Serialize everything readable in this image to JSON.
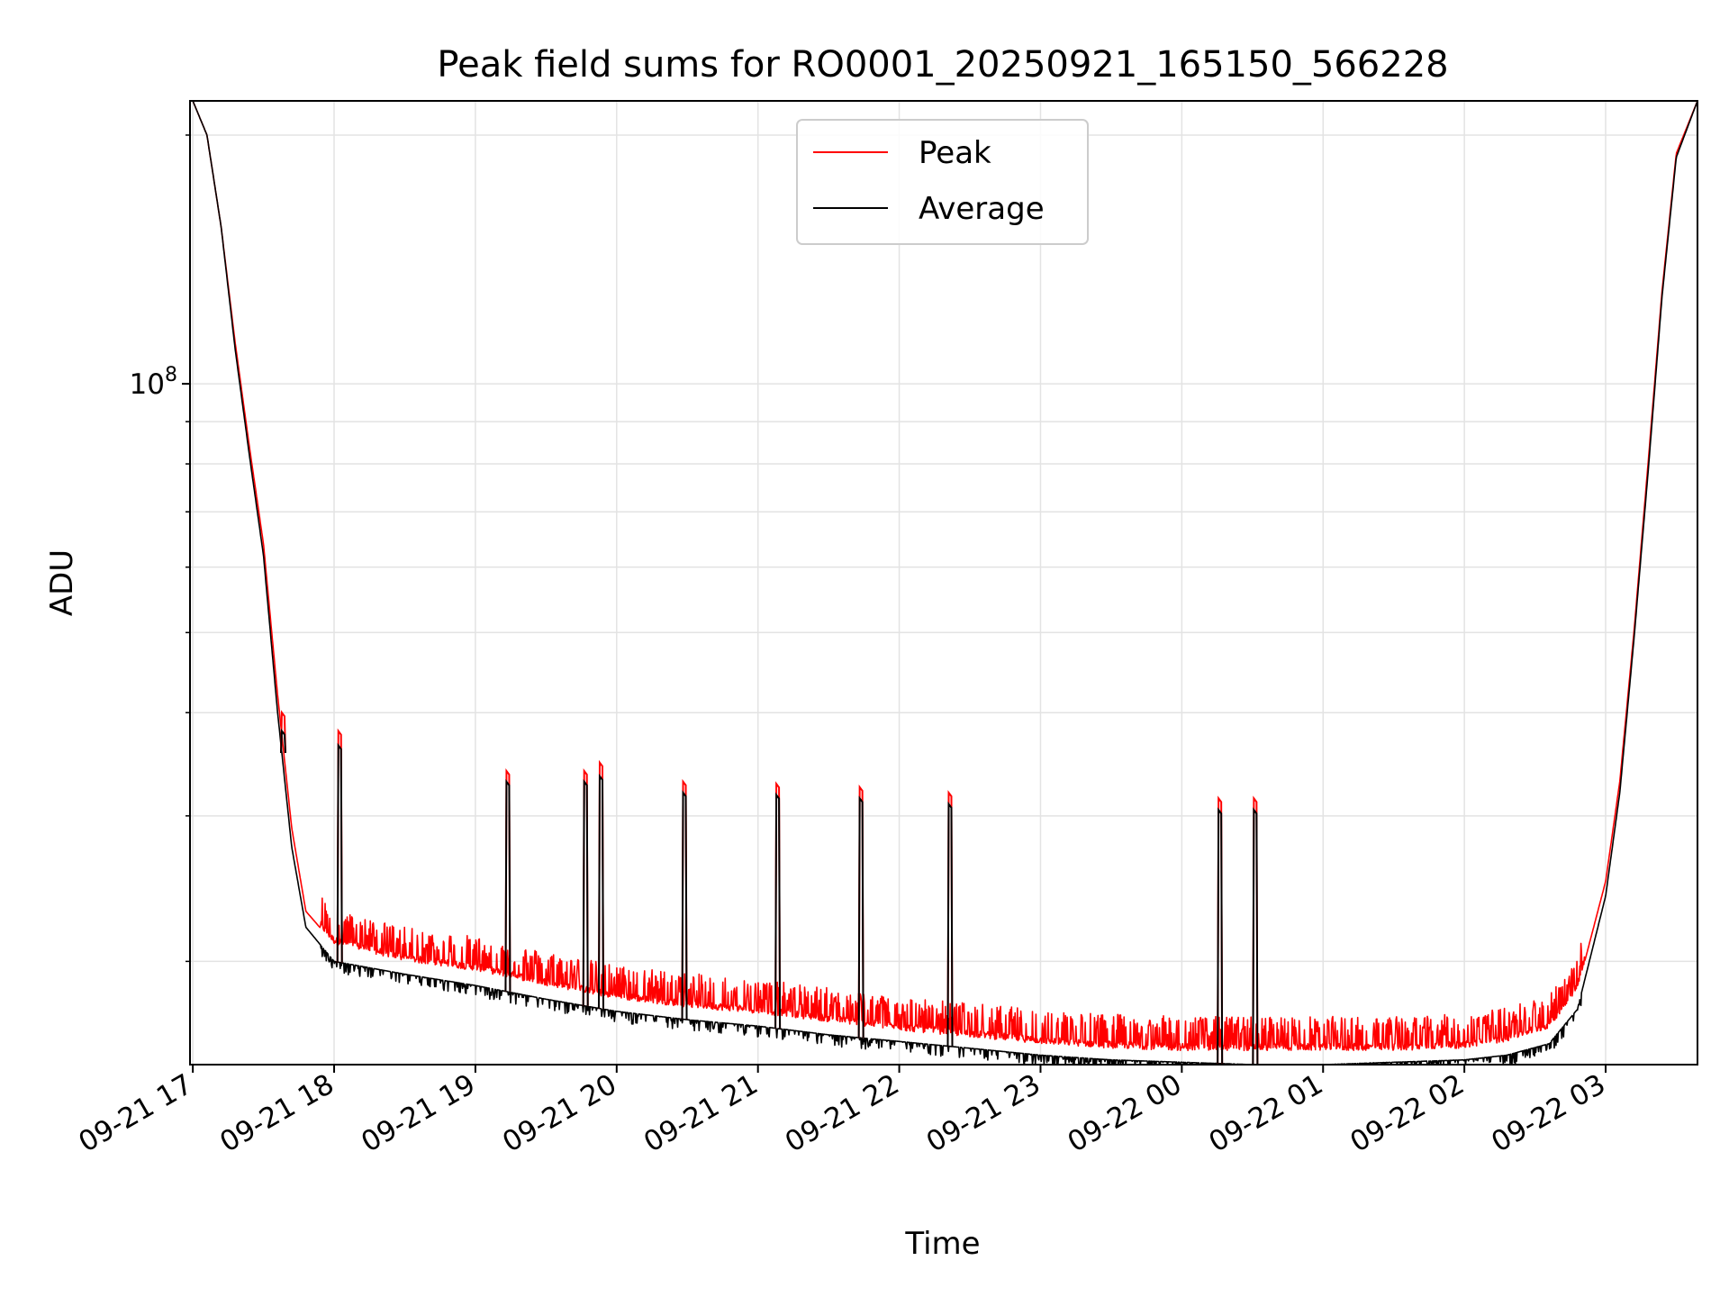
{
  "chart_data": {
    "type": "line",
    "title": "Peak field sums for RO0001_20250921_165150_566228",
    "xlabel": "Time",
    "ylabel": "ADU",
    "y_scale": "log",
    "ylim": [
      15000000,
      220000000
    ],
    "x_unit": "hours since 2025-09-21 17:00",
    "xlim": [
      -0.02,
      10.65
    ],
    "grid": true,
    "legend_position": "top-center",
    "x_ticks": [
      {
        "value": 0,
        "label": "09-21 17"
      },
      {
        "value": 1,
        "label": "09-21 18"
      },
      {
        "value": 2,
        "label": "09-21 19"
      },
      {
        "value": 3,
        "label": "09-21 20"
      },
      {
        "value": 4,
        "label": "09-21 21"
      },
      {
        "value": 5,
        "label": "09-21 22"
      },
      {
        "value": 6,
        "label": "09-21 23"
      },
      {
        "value": 7,
        "label": "09-22 00"
      },
      {
        "value": 8,
        "label": "09-22 01"
      },
      {
        "value": 9,
        "label": "09-22 02"
      },
      {
        "value": 10,
        "label": "09-22 03"
      }
    ],
    "y_major_ticks": [
      {
        "value": 100000000,
        "base": "10",
        "exponent": "8"
      }
    ],
    "y_minor_ticks": [
      20000000,
      30000000,
      40000000,
      50000000,
      60000000,
      70000000,
      80000000,
      90000000,
      200000000
    ],
    "series": [
      {
        "name": "Peak",
        "color": "#ff0000",
        "x": [
          0.0,
          0.1,
          0.2,
          0.3,
          0.4,
          0.5,
          0.6,
          0.7,
          0.8,
          1.0,
          1.5,
          2.0,
          2.5,
          3.0,
          3.5,
          4.0,
          4.5,
          5.0,
          5.5,
          6.0,
          6.5,
          7.0,
          7.5,
          8.0,
          8.5,
          9.0,
          9.3,
          9.6,
          9.8,
          10.0,
          10.1,
          10.2,
          10.3,
          10.4,
          10.5,
          10.65
        ],
        "y": [
          220000000,
          200000000,
          155000000,
          112000000,
          84000000,
          64000000,
          42000000,
          29000000,
          23000000,
          21000000,
          20000000,
          19500000,
          18700000,
          18000000,
          17600000,
          17300000,
          16900000,
          16500000,
          16200000,
          15900000,
          15700000,
          15600000,
          15600000,
          15600000,
          15600000,
          15700000,
          16000000,
          16600000,
          18500000,
          25000000,
          33000000,
          50000000,
          80000000,
          130000000,
          190000000,
          220000000
        ]
      },
      {
        "name": "Average",
        "color": "#000000",
        "x": [
          0.0,
          0.1,
          0.2,
          0.3,
          0.4,
          0.5,
          0.6,
          0.7,
          0.8,
          1.0,
          1.5,
          2.0,
          2.5,
          3.0,
          3.5,
          4.0,
          4.5,
          5.0,
          5.5,
          6.0,
          6.5,
          7.0,
          7.5,
          8.0,
          8.5,
          9.0,
          9.3,
          9.6,
          9.8,
          10.0,
          10.1,
          10.2,
          10.3,
          10.4,
          10.5,
          10.65
        ],
        "y": [
          220000000,
          200000000,
          155000000,
          110000000,
          82000000,
          62000000,
          40000000,
          27500000,
          22000000,
          20000000,
          19300000,
          18700000,
          18000000,
          17400000,
          17000000,
          16700000,
          16300000,
          16000000,
          15700000,
          15400000,
          15200000,
          15100000,
          15000000,
          15000000,
          15100000,
          15200000,
          15400000,
          15900000,
          17500000,
          24000000,
          32000000,
          49000000,
          78000000,
          128000000,
          188000000,
          220000000
        ]
      }
    ],
    "spikes": [
      {
        "x": 0.63,
        "peak": 40000000,
        "average": 38000000
      },
      {
        "x": 1.03,
        "peak": 38000000,
        "average": 36500000
      },
      {
        "x": 2.22,
        "peak": 34000000,
        "average": 33000000
      },
      {
        "x": 2.77,
        "peak": 34000000,
        "average": 33000000
      },
      {
        "x": 2.88,
        "peak": 34800000,
        "average": 33500000
      },
      {
        "x": 3.47,
        "peak": 33000000,
        "average": 32000000
      },
      {
        "x": 4.13,
        "peak": 32800000,
        "average": 31800000
      },
      {
        "x": 4.72,
        "peak": 32500000,
        "average": 31500000
      },
      {
        "x": 5.35,
        "peak": 32000000,
        "average": 31000000
      },
      {
        "x": 7.26,
        "peak": 31500000,
        "average": 30500000
      },
      {
        "x": 7.51,
        "peak": 31500000,
        "average": 30500000
      }
    ]
  }
}
